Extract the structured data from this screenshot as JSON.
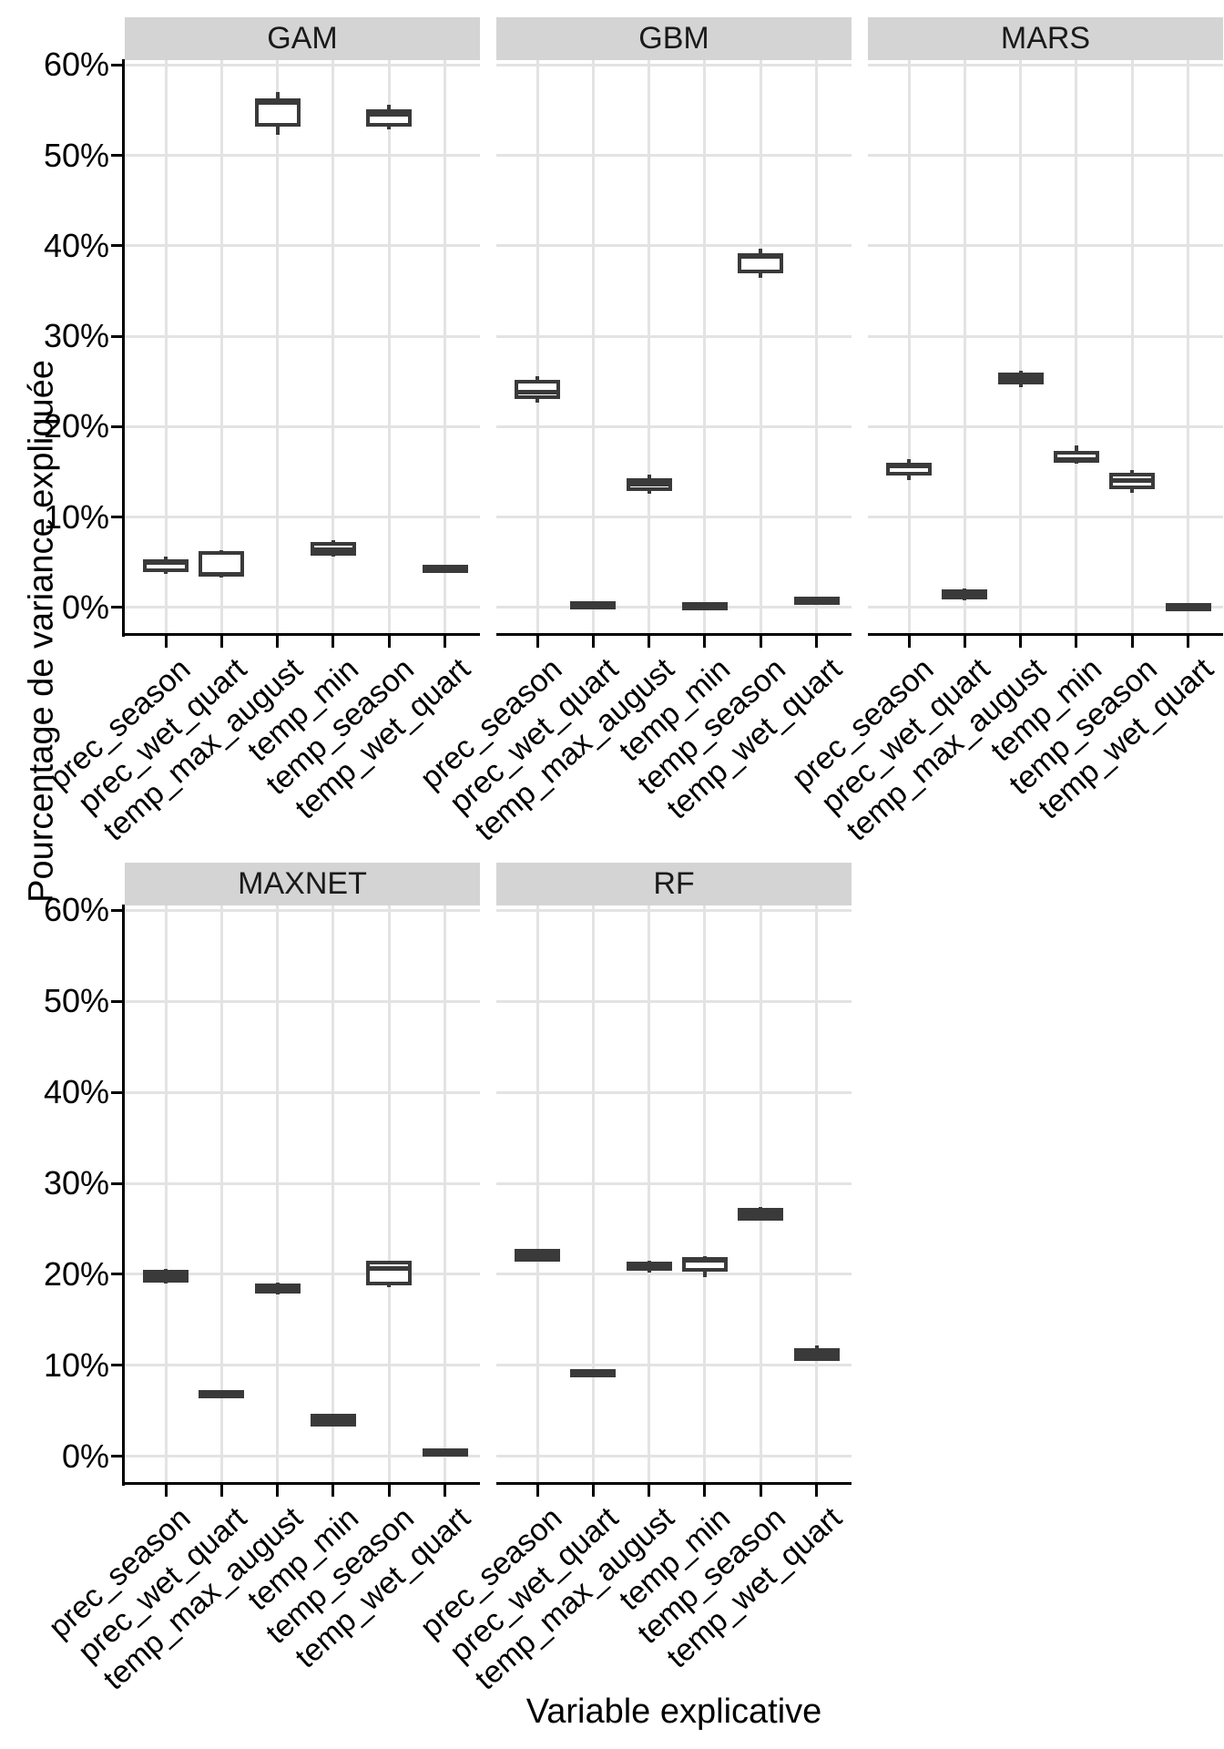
{
  "chart_data": {
    "type": "boxplot",
    "title": "",
    "xlabel": "Variable explicative",
    "ylabel": "Pourcentage de variance expliquée",
    "y_ticks": [
      {
        "value": 0,
        "label": "0%"
      },
      {
        "value": 10,
        "label": "10%"
      },
      {
        "value": 20,
        "label": "20%"
      },
      {
        "value": 30,
        "label": "30%"
      },
      {
        "value": 40,
        "label": "40%"
      },
      {
        "value": 50,
        "label": "50%"
      },
      {
        "value": 60,
        "label": "60%"
      }
    ],
    "y_range": [
      0,
      60
    ],
    "grid": true,
    "legend": "none",
    "categories": [
      "prec_season",
      "prec_wet_quart",
      "temp_max_august",
      "temp_min",
      "temp_season",
      "temp_wet_quart"
    ],
    "colors": {
      "box_border": "#3a3a3a",
      "box_fill": "#ffffff",
      "strip_fill": "#d4d4d4",
      "gridline": "#e3e3e3",
      "axis": "#000000",
      "text": "#000000"
    },
    "facets": [
      {
        "model": "GAM",
        "row": 0,
        "col": 0,
        "boxes": [
          {
            "variable": "prec_season",
            "whisker_low": 3.7,
            "q1": 3.9,
            "median": 5.0,
            "q3": 5.3,
            "whisker_high": 5.6
          },
          {
            "variable": "prec_wet_quart",
            "whisker_low": 3.3,
            "q1": 3.4,
            "median": 3.7,
            "q3": 6.2,
            "whisker_high": 6.3
          },
          {
            "variable": "temp_max_august",
            "whisker_low": 52.3,
            "q1": 53.2,
            "median": 55.9,
            "q3": 56.3,
            "whisker_high": 57.0
          },
          {
            "variable": "temp_min",
            "whisker_low": 5.6,
            "q1": 5.7,
            "median": 6.4,
            "q3": 7.2,
            "whisker_high": 7.4
          },
          {
            "variable": "temp_season",
            "whisker_low": 52.9,
            "q1": 53.2,
            "median": 54.6,
            "q3": 55.1,
            "whisker_high": 55.6
          },
          {
            "variable": "temp_wet_quart",
            "whisker_low": 4.2,
            "q1": 4.2,
            "median": 4.3,
            "q3": 4.5,
            "whisker_high": 4.6
          }
        ]
      },
      {
        "model": "GBM",
        "row": 0,
        "col": 1,
        "boxes": [
          {
            "variable": "prec_season",
            "whisker_low": 22.7,
            "q1": 23.1,
            "median": 23.8,
            "q3": 25.2,
            "whisker_high": 25.6
          },
          {
            "variable": "prec_wet_quart",
            "whisker_low": 0.1,
            "q1": 0.1,
            "median": 0.2,
            "q3": 0.4,
            "whisker_high": 0.4
          },
          {
            "variable": "temp_max_august",
            "whisker_low": 12.6,
            "q1": 12.9,
            "median": 13.6,
            "q3": 14.3,
            "whisker_high": 14.7
          },
          {
            "variable": "temp_min",
            "whisker_low": 0.0,
            "q1": 0.0,
            "median": 0.1,
            "q3": 0.2,
            "whisker_high": 0.2
          },
          {
            "variable": "temp_season",
            "whisker_low": 36.5,
            "q1": 37.0,
            "median": 38.8,
            "q3": 39.2,
            "whisker_high": 39.7
          },
          {
            "variable": "temp_wet_quart",
            "whisker_low": 0.6,
            "q1": 0.6,
            "median": 0.7,
            "q3": 0.9,
            "whisker_high": 0.9
          }
        ]
      },
      {
        "model": "MARS",
        "row": 0,
        "col": 2,
        "boxes": [
          {
            "variable": "prec_season",
            "whisker_low": 14.1,
            "q1": 14.6,
            "median": 15.6,
            "q3": 16.0,
            "whisker_high": 16.4
          },
          {
            "variable": "prec_wet_quart",
            "whisker_low": 0.8,
            "q1": 0.9,
            "median": 1.3,
            "q3": 2.0,
            "whisker_high": 2.1
          },
          {
            "variable": "temp_max_august",
            "whisker_low": 24.4,
            "q1": 24.7,
            "median": 25.3,
            "q3": 26.0,
            "whisker_high": 26.2
          },
          {
            "variable": "temp_min",
            "whisker_low": 15.9,
            "q1": 16.0,
            "median": 16.4,
            "q3": 17.3,
            "whisker_high": 17.9
          },
          {
            "variable": "temp_season",
            "whisker_low": 12.7,
            "q1": 13.1,
            "median": 14.0,
            "q3": 14.9,
            "whisker_high": 15.2
          },
          {
            "variable": "temp_wet_quart",
            "whisker_low": -0.1,
            "q1": -0.1,
            "median": 0.0,
            "q3": 0.1,
            "whisker_high": 0.1
          }
        ]
      },
      {
        "model": "MAXNET",
        "row": 1,
        "col": 0,
        "boxes": [
          {
            "variable": "prec_season",
            "whisker_low": 19.0,
            "q1": 19.2,
            "median": 19.8,
            "q3": 20.2,
            "whisker_high": 20.6
          },
          {
            "variable": "prec_wet_quart",
            "whisker_low": 6.7,
            "q1": 6.7,
            "median": 6.8,
            "q3": 7.0,
            "whisker_high": 7.0
          },
          {
            "variable": "temp_max_august",
            "whisker_low": 17.8,
            "q1": 17.9,
            "median": 18.5,
            "q3": 19.0,
            "whisker_high": 19.1
          },
          {
            "variable": "temp_min",
            "whisker_low": 3.4,
            "q1": 3.5,
            "median": 4.0,
            "q3": 4.5,
            "whisker_high": 4.6
          },
          {
            "variable": "temp_season",
            "whisker_low": 18.6,
            "q1": 18.8,
            "median": 20.6,
            "q3": 21.5,
            "whisker_high": 21.5
          },
          {
            "variable": "temp_wet_quart",
            "whisker_low": 0.3,
            "q1": 0.3,
            "median": 0.4,
            "q3": 0.6,
            "whisker_high": 0.6
          }
        ]
      },
      {
        "model": "RF",
        "row": 1,
        "col": 1,
        "boxes": [
          {
            "variable": "prec_season",
            "whisker_low": 21.5,
            "q1": 21.6,
            "median": 22.1,
            "q3": 22.6,
            "whisker_high": 22.7
          },
          {
            "variable": "prec_wet_quart",
            "whisker_low": 9.0,
            "q1": 9.0,
            "median": 9.1,
            "q3": 9.3,
            "whisker_high": 9.3
          },
          {
            "variable": "temp_max_august",
            "whisker_low": 20.2,
            "q1": 20.6,
            "median": 20.9,
            "q3": 21.2,
            "whisker_high": 21.5
          },
          {
            "variable": "temp_min",
            "whisker_low": 19.7,
            "q1": 20.3,
            "median": 21.5,
            "q3": 21.9,
            "whisker_high": 22.0
          },
          {
            "variable": "temp_season",
            "whisker_low": 25.9,
            "q1": 26.0,
            "median": 26.6,
            "q3": 27.0,
            "whisker_high": 27.4
          },
          {
            "variable": "temp_wet_quart",
            "whisker_low": 10.8,
            "q1": 10.9,
            "median": 11.2,
            "q3": 11.9,
            "whisker_high": 12.2
          }
        ]
      }
    ]
  }
}
